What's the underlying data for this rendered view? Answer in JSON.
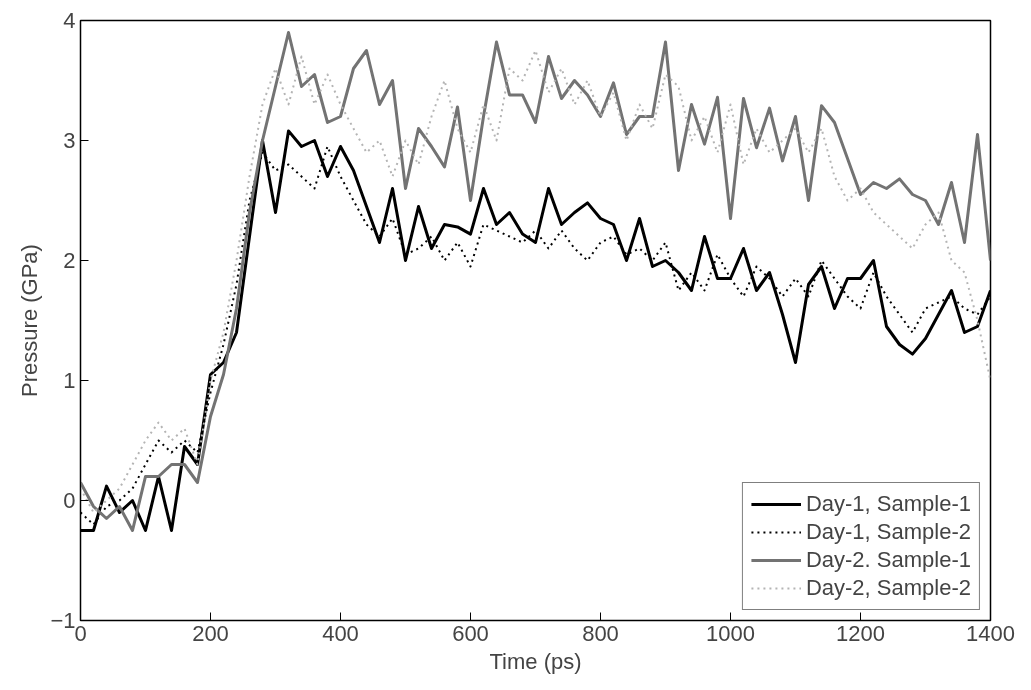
{
  "chart_data": {
    "type": "line",
    "xlabel": "Time (ps)",
    "ylabel": "Pressure (GPa)",
    "x": [
      0,
      20,
      40,
      60,
      80,
      100,
      120,
      140,
      160,
      180,
      200,
      220,
      240,
      260,
      280,
      300,
      320,
      340,
      360,
      380,
      400,
      420,
      440,
      460,
      480,
      500,
      520,
      540,
      560,
      580,
      600,
      620,
      640,
      660,
      680,
      700,
      720,
      740,
      760,
      780,
      800,
      820,
      840,
      860,
      880,
      900,
      920,
      940,
      960,
      980,
      1000,
      1020,
      1040,
      1060,
      1080,
      1100,
      1120,
      1140,
      1160,
      1180,
      1200,
      1220,
      1240,
      1260,
      1280,
      1300,
      1320,
      1340,
      1360,
      1380,
      1400
    ],
    "xlim": [
      0,
      1400
    ],
    "xticks": [
      0,
      200,
      400,
      600,
      800,
      1000,
      1200,
      1400
    ],
    "ylim": [
      -1,
      4
    ],
    "yticks": [
      -1,
      0,
      1,
      2,
      3,
      4
    ],
    "grid": false,
    "legend": "bottom right",
    "series": [
      {
        "name": "Day-1, Sample-1",
        "color": "#000000",
        "line_style": "solid",
        "values": [
          -0.25,
          -0.25,
          0.12,
          -0.1,
          0.0,
          -0.25,
          0.2,
          -0.25,
          0.45,
          0.3,
          1.05,
          1.15,
          1.4,
          2.2,
          3.0,
          2.4,
          3.08,
          2.95,
          3.0,
          2.7,
          2.95,
          2.75,
          2.45,
          2.15,
          2.6,
          2.0,
          2.45,
          2.1,
          2.3,
          2.28,
          2.22,
          2.6,
          2.3,
          2.4,
          2.22,
          2.15,
          2.6,
          2.3,
          2.4,
          2.48,
          2.35,
          2.3,
          2.0,
          2.35,
          1.95,
          2.0,
          1.9,
          1.75,
          2.2,
          1.85,
          1.85,
          2.1,
          1.75,
          1.9,
          1.55,
          1.15,
          1.8,
          1.95,
          1.6,
          1.85,
          1.85,
          2.0,
          1.45,
          1.3,
          1.22,
          1.35,
          1.55,
          1.75,
          1.4,
          1.45,
          1.75
        ]
      },
      {
        "name": "Day-1, Sample-2",
        "color": "#000000",
        "line_style": "dotted",
        "values": [
          -0.1,
          -0.2,
          -0.05,
          0.0,
          0.1,
          0.3,
          0.5,
          0.4,
          0.5,
          0.4,
          0.9,
          1.3,
          1.8,
          2.5,
          2.9,
          2.75,
          2.8,
          2.7,
          2.6,
          2.95,
          2.7,
          2.5,
          2.3,
          2.2,
          2.35,
          2.05,
          2.1,
          2.2,
          2.0,
          2.15,
          1.95,
          2.3,
          2.25,
          2.2,
          2.15,
          2.25,
          2.1,
          2.25,
          2.1,
          2.0,
          2.15,
          2.2,
          2.05,
          2.1,
          2.0,
          2.15,
          1.75,
          1.9,
          1.75,
          2.05,
          1.85,
          1.7,
          1.95,
          1.85,
          1.7,
          1.85,
          1.7,
          2.0,
          1.85,
          1.7,
          1.6,
          1.9,
          1.7,
          1.55,
          1.4,
          1.6,
          1.65,
          1.7,
          1.6,
          1.55,
          1.7
        ]
      },
      {
        "name": "Day-2. Sample-1",
        "color": "#737373",
        "line_style": "solid",
        "values": [
          0.15,
          -0.05,
          -0.15,
          -0.05,
          -0.25,
          0.2,
          0.2,
          0.3,
          0.3,
          0.15,
          0.7,
          1.05,
          1.6,
          2.4,
          3.0,
          3.45,
          3.9,
          3.45,
          3.55,
          3.15,
          3.2,
          3.6,
          3.75,
          3.3,
          3.5,
          2.6,
          3.1,
          2.95,
          2.78,
          3.28,
          2.5,
          3.2,
          3.82,
          3.38,
          3.38,
          3.15,
          3.7,
          3.35,
          3.5,
          3.38,
          3.2,
          3.48,
          3.05,
          3.2,
          3.2,
          3.82,
          2.75,
          3.3,
          2.97,
          3.36,
          2.35,
          3.35,
          2.94,
          3.27,
          2.83,
          3.2,
          2.5,
          3.29,
          3.15,
          2.85,
          2.55,
          2.65,
          2.6,
          2.68,
          2.55,
          2.5,
          2.3,
          2.65,
          2.15,
          3.05,
          2.0
        ]
      },
      {
        "name": "Day-2, Sample-2",
        "color": "#b4b4b4",
        "line_style": "dotted",
        "values": [
          0.1,
          -0.1,
          0.0,
          0.1,
          0.3,
          0.5,
          0.65,
          0.5,
          0.6,
          0.3,
          1.0,
          1.4,
          2.0,
          2.7,
          3.3,
          3.6,
          3.3,
          3.7,
          3.3,
          3.55,
          3.3,
          3.1,
          2.9,
          3.0,
          2.7,
          3.0,
          2.8,
          3.2,
          3.5,
          3.1,
          2.9,
          3.3,
          3.0,
          3.6,
          3.5,
          3.75,
          3.4,
          3.6,
          3.3,
          3.5,
          3.2,
          3.4,
          3.0,
          3.3,
          3.1,
          3.55,
          3.45,
          3.0,
          3.2,
          2.9,
          3.3,
          2.8,
          3.1,
          2.9,
          3.0,
          3.1,
          2.9,
          3.1,
          2.7,
          2.5,
          2.6,
          2.4,
          2.3,
          2.2,
          2.1,
          2.3,
          2.4,
          2.0,
          1.9,
          1.5,
          1.0
        ]
      }
    ]
  }
}
